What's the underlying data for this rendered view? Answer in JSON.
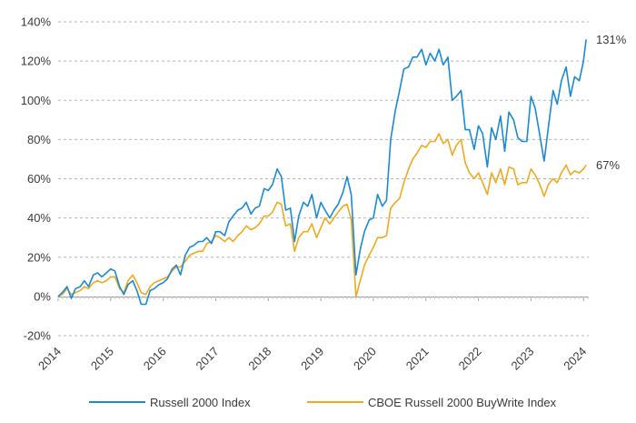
{
  "chart_data": {
    "type": "line",
    "title": "",
    "xlabel": "",
    "ylabel": "",
    "ylim": [
      -20,
      140
    ],
    "xlim": [
      2014,
      2024.1
    ],
    "y_ticks": [
      "-20%",
      "0%",
      "20%",
      "40%",
      "60%",
      "80%",
      "100%",
      "120%",
      "140%"
    ],
    "y_tick_values": [
      -20,
      0,
      20,
      40,
      60,
      80,
      100,
      120,
      140
    ],
    "x_ticks": [
      "2014",
      "2015",
      "2016",
      "2017",
      "2018",
      "2019",
      "2020",
      "2021",
      "2022",
      "2023",
      "2024"
    ],
    "x_tick_values": [
      2014,
      2015,
      2016,
      2017,
      2018,
      2019,
      2020,
      2021,
      2022,
      2023,
      2024
    ],
    "grid": "horizontal dashed",
    "legend_position": "bottom",
    "series": [
      {
        "name": "Russell 2000 Index",
        "color": "#1a8ad4",
        "end_label": "131%",
        "points": [
          [
            2014.0,
            0
          ],
          [
            2014.08,
            2
          ],
          [
            2014.17,
            5
          ],
          [
            2014.25,
            -1
          ],
          [
            2014.33,
            4
          ],
          [
            2014.42,
            5
          ],
          [
            2014.5,
            8
          ],
          [
            2014.58,
            5
          ],
          [
            2014.67,
            11
          ],
          [
            2014.75,
            12
          ],
          [
            2014.83,
            10
          ],
          [
            2014.92,
            12
          ],
          [
            2015.0,
            14
          ],
          [
            2015.08,
            13
          ],
          [
            2015.17,
            5
          ],
          [
            2015.25,
            1
          ],
          [
            2015.33,
            6
          ],
          [
            2015.42,
            8
          ],
          [
            2015.5,
            3
          ],
          [
            2015.58,
            -4
          ],
          [
            2015.67,
            -4
          ],
          [
            2015.75,
            3
          ],
          [
            2015.83,
            4
          ],
          [
            2015.92,
            6
          ],
          [
            2016.0,
            7
          ],
          [
            2016.08,
            9
          ],
          [
            2016.17,
            14
          ],
          [
            2016.25,
            16
          ],
          [
            2016.33,
            11
          ],
          [
            2016.42,
            21
          ],
          [
            2016.5,
            25
          ],
          [
            2016.58,
            26
          ],
          [
            2016.67,
            28
          ],
          [
            2016.75,
            28
          ],
          [
            2016.83,
            30
          ],
          [
            2016.92,
            27
          ],
          [
            2017.0,
            33
          ],
          [
            2017.08,
            33
          ],
          [
            2017.17,
            31
          ],
          [
            2017.25,
            38
          ],
          [
            2017.33,
            41
          ],
          [
            2017.42,
            44
          ],
          [
            2017.5,
            45
          ],
          [
            2017.58,
            48
          ],
          [
            2017.67,
            42
          ],
          [
            2017.75,
            45
          ],
          [
            2017.83,
            46
          ],
          [
            2017.92,
            55
          ],
          [
            2018.0,
            54
          ],
          [
            2018.08,
            57
          ],
          [
            2018.17,
            65
          ],
          [
            2018.25,
            61
          ],
          [
            2018.33,
            44
          ],
          [
            2018.42,
            45
          ],
          [
            2018.5,
            28
          ],
          [
            2018.58,
            41
          ],
          [
            2018.67,
            48
          ],
          [
            2018.75,
            46
          ],
          [
            2018.83,
            52
          ],
          [
            2018.92,
            40
          ],
          [
            2019.0,
            48
          ],
          [
            2019.08,
            44
          ],
          [
            2019.17,
            40
          ],
          [
            2019.25,
            44
          ],
          [
            2019.33,
            47
          ],
          [
            2019.42,
            53
          ],
          [
            2019.5,
            61
          ],
          [
            2019.58,
            52
          ],
          [
            2019.67,
            11
          ],
          [
            2019.75,
            24
          ],
          [
            2019.83,
            33
          ],
          [
            2019.92,
            39
          ],
          [
            2020.0,
            40
          ],
          [
            2020.08,
            52
          ],
          [
            2020.17,
            46
          ],
          [
            2020.25,
            49
          ],
          [
            2020.33,
            80
          ],
          [
            2020.42,
            95
          ],
          [
            2020.5,
            105
          ],
          [
            2020.58,
            116
          ],
          [
            2020.67,
            117
          ],
          [
            2020.75,
            122
          ],
          [
            2020.83,
            122
          ],
          [
            2020.92,
            126
          ],
          [
            2021.0,
            118
          ],
          [
            2021.08,
            124
          ],
          [
            2021.17,
            120
          ],
          [
            2021.25,
            126
          ],
          [
            2021.33,
            118
          ],
          [
            2021.42,
            122
          ],
          [
            2021.5,
            100
          ],
          [
            2021.58,
            102
          ],
          [
            2021.67,
            105
          ],
          [
            2021.75,
            85
          ],
          [
            2021.83,
            85
          ],
          [
            2021.92,
            75
          ],
          [
            2022.0,
            87
          ],
          [
            2022.08,
            83
          ],
          [
            2022.17,
            66
          ],
          [
            2022.25,
            86
          ],
          [
            2022.33,
            80
          ],
          [
            2022.42,
            92
          ],
          [
            2022.5,
            74
          ],
          [
            2022.58,
            94
          ],
          [
            2022.67,
            90
          ],
          [
            2022.75,
            81
          ],
          [
            2022.83,
            79
          ],
          [
            2022.92,
            79
          ],
          [
            2023.0,
            102
          ],
          [
            2023.08,
            96
          ],
          [
            2023.17,
            82
          ],
          [
            2023.25,
            69
          ],
          [
            2023.33,
            86
          ],
          [
            2023.42,
            105
          ],
          [
            2023.5,
            98
          ],
          [
            2023.58,
            110
          ],
          [
            2023.67,
            117
          ],
          [
            2023.75,
            102
          ],
          [
            2023.83,
            112
          ],
          [
            2023.92,
            110
          ],
          [
            2024.0,
            120
          ],
          [
            2024.05,
            131
          ]
        ]
      },
      {
        "name": "CBOE Russell 2000 BuyWrite Index",
        "color": "#f0a91e",
        "end_label": "67%",
        "points": [
          [
            2014.0,
            0
          ],
          [
            2014.08,
            1
          ],
          [
            2014.17,
            4
          ],
          [
            2014.25,
            1
          ],
          [
            2014.33,
            2
          ],
          [
            2014.42,
            3
          ],
          [
            2014.5,
            5
          ],
          [
            2014.58,
            4
          ],
          [
            2014.67,
            7
          ],
          [
            2014.75,
            8
          ],
          [
            2014.83,
            7
          ],
          [
            2014.92,
            8
          ],
          [
            2015.0,
            10
          ],
          [
            2015.08,
            10
          ],
          [
            2015.17,
            4
          ],
          [
            2015.25,
            2
          ],
          [
            2015.33,
            8
          ],
          [
            2015.42,
            11
          ],
          [
            2015.5,
            7
          ],
          [
            2015.58,
            2
          ],
          [
            2015.67,
            1
          ],
          [
            2015.75,
            5
          ],
          [
            2015.83,
            7
          ],
          [
            2015.92,
            8
          ],
          [
            2016.0,
            9
          ],
          [
            2016.08,
            10
          ],
          [
            2016.17,
            13
          ],
          [
            2016.25,
            15
          ],
          [
            2016.33,
            15
          ],
          [
            2016.42,
            18
          ],
          [
            2016.5,
            21
          ],
          [
            2016.58,
            22
          ],
          [
            2016.67,
            23
          ],
          [
            2016.75,
            23
          ],
          [
            2016.83,
            27
          ],
          [
            2016.92,
            28
          ],
          [
            2017.0,
            31
          ],
          [
            2017.08,
            30
          ],
          [
            2017.17,
            28
          ],
          [
            2017.25,
            30
          ],
          [
            2017.33,
            28
          ],
          [
            2017.42,
            31
          ],
          [
            2017.5,
            33
          ],
          [
            2017.58,
            36
          ],
          [
            2017.67,
            34
          ],
          [
            2017.75,
            35
          ],
          [
            2017.83,
            37
          ],
          [
            2017.92,
            41
          ],
          [
            2018.0,
            41
          ],
          [
            2018.08,
            43
          ],
          [
            2018.17,
            48
          ],
          [
            2018.25,
            47
          ],
          [
            2018.33,
            36
          ],
          [
            2018.42,
            37
          ],
          [
            2018.5,
            23
          ],
          [
            2018.58,
            30
          ],
          [
            2018.67,
            33
          ],
          [
            2018.75,
            33
          ],
          [
            2018.83,
            37
          ],
          [
            2018.92,
            30
          ],
          [
            2019.0,
            35
          ],
          [
            2019.08,
            40
          ],
          [
            2019.17,
            37
          ],
          [
            2019.25,
            40
          ],
          [
            2019.33,
            43
          ],
          [
            2019.42,
            46
          ],
          [
            2019.5,
            47
          ],
          [
            2019.58,
            39
          ],
          [
            2019.67,
            0
          ],
          [
            2019.75,
            8
          ],
          [
            2019.83,
            16
          ],
          [
            2019.92,
            21
          ],
          [
            2020.0,
            25
          ],
          [
            2020.08,
            30
          ],
          [
            2020.17,
            30
          ],
          [
            2020.25,
            31
          ],
          [
            2020.33,
            45
          ],
          [
            2020.42,
            48
          ],
          [
            2020.5,
            50
          ],
          [
            2020.58,
            58
          ],
          [
            2020.67,
            65
          ],
          [
            2020.75,
            70
          ],
          [
            2020.83,
            73
          ],
          [
            2020.92,
            77
          ],
          [
            2021.0,
            76
          ],
          [
            2021.08,
            79
          ],
          [
            2021.17,
            79
          ],
          [
            2021.25,
            83
          ],
          [
            2021.33,
            78
          ],
          [
            2021.42,
            80
          ],
          [
            2021.5,
            72
          ],
          [
            2021.58,
            77
          ],
          [
            2021.67,
            80
          ],
          [
            2021.75,
            68
          ],
          [
            2021.83,
            63
          ],
          [
            2021.92,
            60
          ],
          [
            2022.0,
            63
          ],
          [
            2022.08,
            58
          ],
          [
            2022.17,
            52
          ],
          [
            2022.25,
            63
          ],
          [
            2022.33,
            58
          ],
          [
            2022.42,
            65
          ],
          [
            2022.5,
            57
          ],
          [
            2022.58,
            66
          ],
          [
            2022.67,
            65
          ],
          [
            2022.75,
            57
          ],
          [
            2022.83,
            58
          ],
          [
            2022.92,
            58
          ],
          [
            2023.0,
            65
          ],
          [
            2023.08,
            62
          ],
          [
            2023.17,
            57
          ],
          [
            2023.25,
            51
          ],
          [
            2023.33,
            57
          ],
          [
            2023.42,
            60
          ],
          [
            2023.5,
            58
          ],
          [
            2023.58,
            63
          ],
          [
            2023.67,
            67
          ],
          [
            2023.75,
            62
          ],
          [
            2023.83,
            64
          ],
          [
            2023.92,
            63
          ],
          [
            2024.0,
            65
          ],
          [
            2024.05,
            67
          ]
        ]
      }
    ]
  }
}
